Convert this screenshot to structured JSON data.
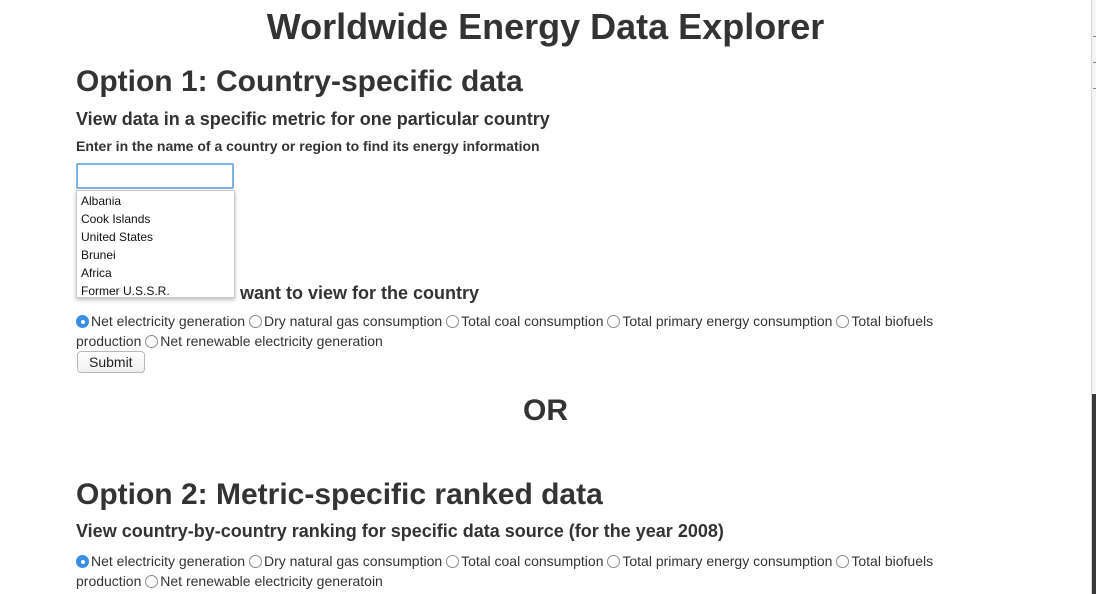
{
  "page": {
    "title": "Worldwide Energy Data Explorer",
    "or_divider": "OR"
  },
  "option1": {
    "heading": "Option 1: Country-specific data",
    "subheading": "View data in a specific metric for one particular country",
    "input_label": "Enter in the name of a country or region to find its energy information",
    "input_value": "",
    "input_placeholder": "",
    "autocomplete": [
      "Albania",
      "Cook Islands",
      "United States",
      "Brunei",
      "Africa",
      "Former U.S.S.R."
    ],
    "metric_heading_visible": "want to view for the country",
    "metrics": [
      {
        "label": "Net electricity generation",
        "checked": true
      },
      {
        "label": "Dry natural gas consumption",
        "checked": false
      },
      {
        "label": "Total coal consumption",
        "checked": false
      },
      {
        "label": "Total primary energy consumption",
        "checked": false
      },
      {
        "label": "Total biofuels production",
        "checked": false
      },
      {
        "label": "Net renewable electricity generation",
        "checked": false
      }
    ],
    "submit_label": "Submit"
  },
  "option2": {
    "heading": "Option 2: Metric-specific ranked data",
    "subheading": "View country-by-country ranking for specific data source (for the year 2008)",
    "metrics": [
      {
        "label": "Net electricity generation",
        "checked": true
      },
      {
        "label": "Dry natural gas consumption",
        "checked": false
      },
      {
        "label": "Total coal consumption",
        "checked": false
      },
      {
        "label": "Total primary energy consumption",
        "checked": false
      },
      {
        "label": "Total biofuels production",
        "checked": false
      },
      {
        "label": "Net renewable electricity generatoin",
        "checked": false
      }
    ]
  },
  "colors": {
    "text": "#333333",
    "accent": "#3a8ee6",
    "input_focus": "#7fb3e8"
  }
}
